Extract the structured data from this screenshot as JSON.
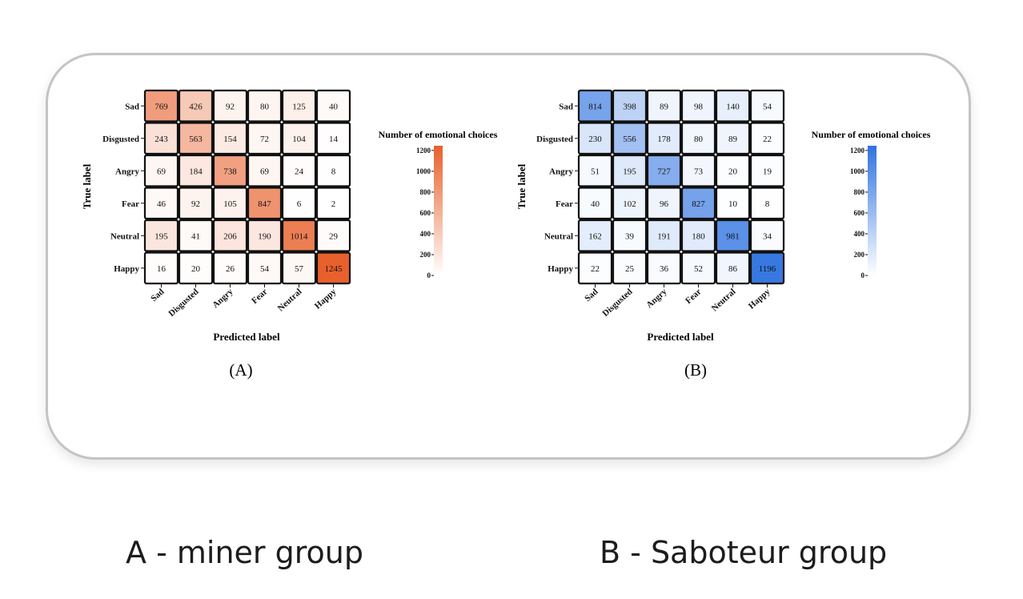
{
  "chart_data": [
    {
      "type": "heatmap",
      "panel_label": "(A)",
      "ylabel": "True label",
      "xlabel": "Predicted label",
      "row_labels": [
        "Sad",
        "Disgusted",
        "Angry",
        "Fear",
        "Neutral",
        "Happy"
      ],
      "col_labels": [
        "Sad",
        "Disgusted",
        "Angry",
        "Fear",
        "Neutral",
        "Happy"
      ],
      "values": [
        [
          769,
          426,
          92,
          80,
          125,
          40
        ],
        [
          243,
          563,
          154,
          72,
          104,
          14
        ],
        [
          69,
          184,
          738,
          69,
          24,
          8
        ],
        [
          46,
          92,
          105,
          847,
          6,
          2
        ],
        [
          195,
          41,
          206,
          190,
          1014,
          29
        ],
        [
          16,
          20,
          26,
          54,
          57,
          1245
        ]
      ],
      "colorbar": {
        "title": "Number of emotional choices",
        "ticks": [
          0,
          200,
          400,
          600,
          800,
          1000,
          1200
        ],
        "range": [
          0,
          1245
        ],
        "color_low": "#ffffff",
        "color_high": "#e8602c"
      }
    },
    {
      "type": "heatmap",
      "panel_label": "(B)",
      "ylabel": "True label",
      "xlabel": "Predicted label",
      "row_labels": [
        "Sad",
        "Disgusted",
        "Angry",
        "Fear",
        "Neutral",
        "Happy"
      ],
      "col_labels": [
        "Sad",
        "Disgusted",
        "Angry",
        "Fear",
        "Neutral",
        "Happy"
      ],
      "values": [
        [
          814,
          398,
          89,
          98,
          140,
          54
        ],
        [
          230,
          556,
          178,
          80,
          89,
          22
        ],
        [
          51,
          195,
          727,
          73,
          20,
          19
        ],
        [
          40,
          102,
          96,
          827,
          10,
          8
        ],
        [
          162,
          39,
          191,
          180,
          981,
          34
        ],
        [
          22,
          25,
          36,
          52,
          86,
          1196
        ]
      ],
      "colorbar": {
        "title": "Number of emotional choices",
        "ticks": [
          0,
          200,
          400,
          600,
          800,
          1000,
          1200
        ],
        "range": [
          0,
          1245
        ],
        "color_low": "#ffffff",
        "color_high": "#2f73e0"
      }
    }
  ],
  "captions": {
    "a": "A - miner group",
    "b": "B - Saboteur group"
  }
}
